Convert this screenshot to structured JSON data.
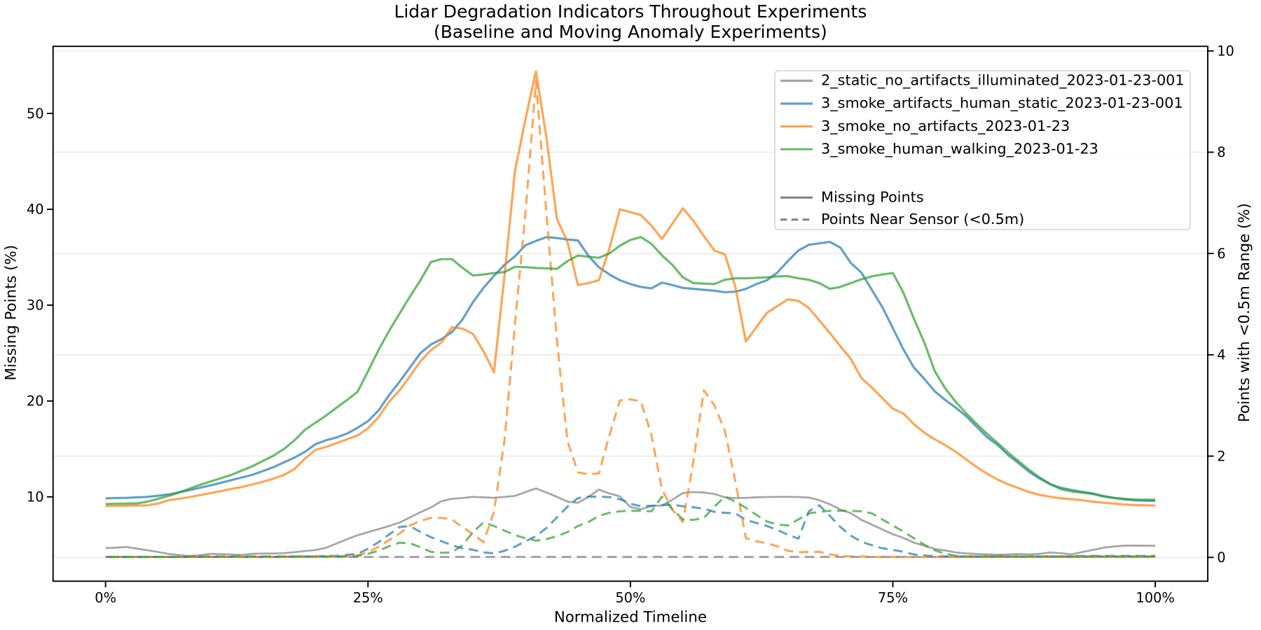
{
  "chart_data": {
    "type": "line",
    "title": "Lidar Degradation Indicators Throughout Experiments",
    "subtitle": "(Baseline and Moving Anomaly Experiments)",
    "xlabel": "Normalized Timeline",
    "ylabel_left": "Missing Points (%)",
    "ylabel_right": "Points with <0.5m Range (%)",
    "x_ticks": [
      0,
      25,
      50,
      75,
      100
    ],
    "x_tick_labels": [
      "0%",
      "25%",
      "50%",
      "75%",
      "100%"
    ],
    "xlim": [
      -5,
      105
    ],
    "ylim_left": [
      1.2,
      57.0
    ],
    "ylim_right": [
      -0.47,
      10.09
    ],
    "y_ticks_left": [
      10,
      20,
      30,
      40,
      50
    ],
    "y_ticks_right": [
      0,
      2,
      4,
      6,
      8,
      10
    ],
    "grid": {
      "axis": "y",
      "on_ticks": "right",
      "color": "#e8e8e8"
    },
    "legend": {
      "location": "upper right",
      "series_labels": [
        "2_static_no_artifacts_illuminated_2023-01-23-001",
        "3_smoke_artifacts_human_static_2023-01-23-001",
        "3_smoke_no_artifacts_2023-01-23",
        "3_smoke_human_walking_2023-01-23"
      ],
      "style_labels": [
        "Missing Points",
        "Points Near Sensor (<0.5m)"
      ],
      "style_colors": [
        "#808080",
        "#808080"
      ]
    },
    "x": [
      0,
      1,
      2,
      3,
      4,
      5,
      6,
      7,
      8,
      9,
      10,
      11,
      12,
      13,
      14,
      15,
      16,
      17,
      18,
      19,
      20,
      21,
      22,
      23,
      24,
      25,
      26,
      27,
      28,
      29,
      30,
      31,
      32,
      33,
      34,
      35,
      36,
      37,
      38,
      39,
      40,
      41,
      42,
      43,
      44,
      45,
      46,
      47,
      48,
      49,
      50,
      51,
      52,
      53,
      54,
      55,
      56,
      57,
      58,
      59,
      60,
      61,
      62,
      63,
      64,
      65,
      66,
      67,
      68,
      69,
      70,
      71,
      72,
      73,
      74,
      75,
      76,
      77,
      78,
      79,
      80,
      81,
      82,
      83,
      84,
      85,
      86,
      87,
      88,
      89,
      90,
      91,
      92,
      93,
      94,
      95,
      96,
      97,
      98,
      99,
      100
    ],
    "series": [
      {
        "name": "2_static_no_artifacts_illuminated_2023-01-23-001",
        "metric": "Missing Points",
        "style": "solid",
        "axis": "left",
        "color": "#7f7f7f",
        "alpha": 0.7,
        "values": [
          4.66,
          4.7,
          4.77,
          4.6,
          4.43,
          4.25,
          4.05,
          3.93,
          3.83,
          3.92,
          4.06,
          4.03,
          3.99,
          3.95,
          4.06,
          4.09,
          4.09,
          4.13,
          4.23,
          4.35,
          4.45,
          4.69,
          5.13,
          5.58,
          5.99,
          6.31,
          6.63,
          6.96,
          7.32,
          7.85,
          8.4,
          8.9,
          9.55,
          9.8,
          9.88,
          10.0,
          9.95,
          9.9,
          10.0,
          10.1,
          10.5,
          10.88,
          10.45,
          10.0,
          9.5,
          9.38,
          10.0,
          10.75,
          10.35,
          10.05,
          8.95,
          8.7,
          9.05,
          9.1,
          9.7,
          10.4,
          10.5,
          10.45,
          10.3,
          9.95,
          9.87,
          9.9,
          9.95,
          9.98,
          10.0,
          10.0,
          9.98,
          9.93,
          9.65,
          9.23,
          8.67,
          8.3,
          7.6,
          7.1,
          6.6,
          6.1,
          5.72,
          5.23,
          4.9,
          4.57,
          4.4,
          4.2,
          4.1,
          4.04,
          4.0,
          3.96,
          4.0,
          4.04,
          4.0,
          4.06,
          4.2,
          4.13,
          4.0,
          4.23,
          4.45,
          4.68,
          4.82,
          4.9,
          4.92,
          4.9,
          4.9
        ]
      },
      {
        "name": "2_static_no_artifacts_illuminated_2023-01-23-001",
        "metric": "Points Near Sensor (<0.5m)",
        "style": "dashed",
        "axis": "right",
        "color": "#7f7f7f",
        "alpha": 0.7,
        "values": [
          0.01,
          0.01,
          0.01,
          0.01,
          0.01,
          0.01,
          0.01,
          0.01,
          0.01,
          0.01,
          0.01,
          0.01,
          0.01,
          0.01,
          0.01,
          0.01,
          0.01,
          0.01,
          0.01,
          0.01,
          0.01,
          0.01,
          0.01,
          0.01,
          0.01,
          0.01,
          0.01,
          0.01,
          0.01,
          0.01,
          0.01,
          0.01,
          0.01,
          0.01,
          0.01,
          0.01,
          0.01,
          0.01,
          0.01,
          0.01,
          0.01,
          0.01,
          0.01,
          0.01,
          0.01,
          0.01,
          0.01,
          0.01,
          0.01,
          0.01,
          0.01,
          0.01,
          0.01,
          0.01,
          0.01,
          0.01,
          0.01,
          0.01,
          0.01,
          0.01,
          0.01,
          0.01,
          0.01,
          0.01,
          0.01,
          0.01,
          0.01,
          0.01,
          0.01,
          0.01,
          0.01,
          0.01,
          0.01,
          0.01,
          0.01,
          0.01,
          0.01,
          0.01,
          0.01,
          0.01,
          0.01,
          0.01,
          0.01,
          0.01,
          0.01,
          0.01,
          0.01,
          0.01,
          0.01,
          0.01,
          0.01,
          0.01,
          0.01,
          0.01,
          0.01,
          0.01,
          0.01,
          0.01,
          0.01,
          0.01,
          0.01
        ]
      },
      {
        "name": "3_smoke_artifacts_human_static_2023-01-23-001",
        "metric": "Missing Points",
        "style": "solid",
        "axis": "left",
        "color": "#1f77b4",
        "alpha": 0.7,
        "values": [
          9.85,
          9.88,
          9.9,
          9.95,
          10.0,
          10.12,
          10.25,
          10.47,
          10.7,
          10.95,
          11.2,
          11.47,
          11.75,
          12.03,
          12.3,
          12.7,
          13.1,
          13.6,
          14.1,
          14.7,
          15.5,
          15.9,
          16.2,
          16.6,
          17.2,
          17.9,
          19.0,
          20.6,
          22.0,
          23.5,
          25.0,
          25.9,
          26.45,
          27.2,
          28.5,
          30.3,
          31.8,
          33.05,
          34.2,
          35.1,
          36.25,
          36.7,
          37.1,
          37.0,
          36.85,
          36.75,
          35.15,
          33.95,
          33.2,
          32.6,
          32.2,
          31.9,
          31.75,
          32.35,
          32.1,
          31.8,
          31.7,
          31.6,
          31.5,
          31.35,
          31.4,
          31.7,
          32.2,
          32.6,
          33.4,
          34.6,
          35.7,
          36.3,
          36.45,
          36.6,
          36.0,
          34.4,
          33.4,
          31.6,
          29.8,
          27.6,
          25.4,
          23.5,
          22.3,
          21.0,
          20.1,
          19.3,
          18.4,
          17.3,
          16.2,
          15.4,
          14.35,
          13.5,
          12.6,
          11.9,
          11.3,
          10.95,
          10.73,
          10.53,
          10.36,
          10.1,
          9.9,
          9.75,
          9.65,
          9.6,
          9.58
        ]
      },
      {
        "name": "3_smoke_artifacts_human_static_2023-01-23-001",
        "metric": "Points Near Sensor (<0.5m)",
        "style": "dashed",
        "axis": "right",
        "color": "#1f77b4",
        "alpha": 0.7,
        "values": [
          0.01,
          0.01,
          0.01,
          0.01,
          0.01,
          0.01,
          0.01,
          0.01,
          0.01,
          0.01,
          0.01,
          0.01,
          0.01,
          0.01,
          0.01,
          0.01,
          0.01,
          0.01,
          0.02,
          0.02,
          0.02,
          0.03,
          0.03,
          0.05,
          0.07,
          0.17,
          0.3,
          0.45,
          0.6,
          0.62,
          0.5,
          0.4,
          0.32,
          0.24,
          0.18,
          0.15,
          0.1,
          0.08,
          0.13,
          0.21,
          0.32,
          0.42,
          0.58,
          0.79,
          1.0,
          1.17,
          1.2,
          1.2,
          1.19,
          1.15,
          1.06,
          1.01,
          1.02,
          1.03,
          1.04,
          1.01,
          0.99,
          0.96,
          0.9,
          0.88,
          0.87,
          0.74,
          0.68,
          0.62,
          0.54,
          0.45,
          0.37,
          0.91,
          1.03,
          0.82,
          0.6,
          0.43,
          0.31,
          0.24,
          0.18,
          0.15,
          0.11,
          0.06,
          0.04,
          0.02,
          0.02,
          0.02,
          0.02,
          0.02,
          0.02,
          0.02,
          0.02,
          0.02,
          0.02,
          0.02,
          0.02,
          0.02,
          0.02,
          0.03,
          0.03,
          0.03,
          0.03,
          0.03,
          0.03,
          0.03,
          0.03
        ]
      },
      {
        "name": "3_smoke_no_artifacts_2023-01-23",
        "metric": "Missing Points",
        "style": "solid",
        "axis": "left",
        "color": "#ff7f0e",
        "alpha": 0.7,
        "values": [
          9.05,
          9.06,
          9.07,
          9.09,
          9.12,
          9.3,
          9.65,
          9.8,
          9.97,
          10.18,
          10.39,
          10.59,
          10.83,
          11.03,
          11.3,
          11.58,
          11.9,
          12.29,
          12.9,
          14.0,
          14.9,
          15.2,
          15.6,
          16.0,
          16.4,
          17.15,
          18.3,
          19.9,
          21.1,
          22.6,
          24.15,
          25.3,
          26.1,
          27.7,
          27.55,
          27.0,
          25.2,
          23.0,
          33.0,
          44.0,
          49.4,
          54.4,
          47.5,
          39.0,
          36.6,
          32.1,
          32.3,
          32.6,
          35.9,
          40.0,
          39.7,
          39.4,
          38.3,
          36.9,
          38.5,
          40.1,
          38.8,
          37.2,
          35.7,
          35.3,
          31.9,
          26.2,
          27.7,
          29.2,
          29.9,
          30.6,
          30.45,
          29.7,
          28.4,
          27.1,
          25.7,
          24.4,
          22.4,
          21.4,
          20.3,
          19.2,
          18.7,
          17.6,
          16.7,
          16.0,
          15.4,
          14.7,
          13.9,
          13.1,
          12.4,
          11.8,
          11.3,
          10.9,
          10.5,
          10.2,
          10.0,
          9.85,
          9.75,
          9.65,
          9.5,
          9.4,
          9.3,
          9.2,
          9.15,
          9.12,
          9.1
        ]
      },
      {
        "name": "3_smoke_no_artifacts_2023-01-23",
        "metric": "Points Near Sensor (<0.5m)",
        "style": "dashed",
        "axis": "right",
        "color": "#ff7f0e",
        "alpha": 0.7,
        "values": [
          0.01,
          0.01,
          0.01,
          0.01,
          0.01,
          0.01,
          0.01,
          0.01,
          0.01,
          0.01,
          0.01,
          0.01,
          0.01,
          0.01,
          0.01,
          0.01,
          0.01,
          0.01,
          0.01,
          0.01,
          0.01,
          0.01,
          0.02,
          0.02,
          0.04,
          0.1,
          0.21,
          0.34,
          0.47,
          0.63,
          0.72,
          0.78,
          0.78,
          0.75,
          0.6,
          0.46,
          0.3,
          0.9,
          2.3,
          4.6,
          6.8,
          9.4,
          6.8,
          4.28,
          2.3,
          1.68,
          1.64,
          1.66,
          2.41,
          3.1,
          3.12,
          3.08,
          2.42,
          1.35,
          0.94,
          0.7,
          1.9,
          3.3,
          3.0,
          2.5,
          1.5,
          0.38,
          0.32,
          0.28,
          0.22,
          0.13,
          0.1,
          0.11,
          0.11,
          0.06,
          0.03,
          0.02,
          0.02,
          0.01,
          0.01,
          0.01,
          0.01,
          0.01,
          0.01,
          0.01,
          0.01,
          0.01,
          0.01,
          0.01,
          0.01,
          0.01,
          0.01,
          0.01,
          0.01,
          0.01,
          0.01,
          0.01,
          0.01,
          0.01,
          0.01,
          0.01,
          0.01,
          0.01,
          0.01,
          0.01,
          0.01
        ]
      },
      {
        "name": "3_smoke_human_walking_2023-01-23",
        "metric": "Missing Points",
        "style": "solid",
        "axis": "left",
        "color": "#2ca02c",
        "alpha": 0.7,
        "values": [
          9.25,
          9.28,
          9.3,
          9.32,
          9.5,
          9.8,
          10.1,
          10.45,
          10.85,
          11.25,
          11.6,
          11.95,
          12.3,
          12.75,
          13.2,
          13.75,
          14.3,
          15.0,
          15.9,
          17.0,
          17.74,
          18.47,
          19.3,
          20.1,
          20.95,
          23.1,
          25.3,
          27.3,
          29.1,
          30.9,
          32.6,
          34.5,
          34.8,
          34.8,
          33.9,
          33.1,
          33.2,
          33.35,
          33.45,
          34.0,
          33.96,
          33.88,
          33.84,
          33.78,
          34.6,
          35.17,
          35.06,
          34.94,
          35.4,
          36.2,
          36.8,
          37.1,
          36.4,
          35.2,
          34.2,
          32.9,
          32.3,
          32.25,
          32.2,
          32.65,
          32.8,
          32.8,
          32.85,
          32.9,
          33.0,
          33.03,
          32.8,
          32.65,
          32.3,
          31.7,
          31.9,
          32.3,
          32.7,
          33.0,
          33.2,
          33.35,
          31.3,
          28.6,
          26.1,
          23.1,
          21.3,
          19.9,
          18.7,
          17.6,
          16.55,
          15.6,
          14.6,
          13.7,
          12.8,
          12.0,
          11.35,
          10.8,
          10.57,
          10.45,
          10.32,
          10.05,
          9.9,
          9.8,
          9.72,
          9.7,
          9.7
        ]
      },
      {
        "name": "3_smoke_human_walking_2023-01-23",
        "metric": "Points Near Sensor (<0.5m)",
        "style": "dashed",
        "axis": "right",
        "color": "#2ca02c",
        "alpha": 0.7,
        "values": [
          0.01,
          0.01,
          0.01,
          0.01,
          0.01,
          0.01,
          0.01,
          0.01,
          0.02,
          0.02,
          0.02,
          0.02,
          0.02,
          0.02,
          0.02,
          0.02,
          0.02,
          0.02,
          0.02,
          0.02,
          0.02,
          0.02,
          0.02,
          0.02,
          0.03,
          0.07,
          0.13,
          0.22,
          0.29,
          0.28,
          0.2,
          0.11,
          0.09,
          0.1,
          0.24,
          0.5,
          0.69,
          0.62,
          0.53,
          0.44,
          0.38,
          0.33,
          0.36,
          0.42,
          0.5,
          0.62,
          0.7,
          0.82,
          0.88,
          0.91,
          0.92,
          0.92,
          0.91,
          1.2,
          0.95,
          0.75,
          0.74,
          0.78,
          1.0,
          1.2,
          1.1,
          0.98,
          0.84,
          0.71,
          0.65,
          0.63,
          0.75,
          0.87,
          0.9,
          0.92,
          0.92,
          0.92,
          0.91,
          0.87,
          0.75,
          0.63,
          0.51,
          0.38,
          0.25,
          0.14,
          0.07,
          0.03,
          0.02,
          0.02,
          0.02,
          0.02,
          0.02,
          0.02,
          0.02,
          0.02,
          0.02,
          0.02,
          0.02,
          0.02,
          0.02,
          0.02,
          0.02,
          0.02,
          0.02,
          0.02,
          0.02
        ]
      }
    ],
    "legend_series_colors": [
      "#7f7f7f",
      "#1f77b4",
      "#ff7f0e",
      "#2ca02c"
    ]
  }
}
